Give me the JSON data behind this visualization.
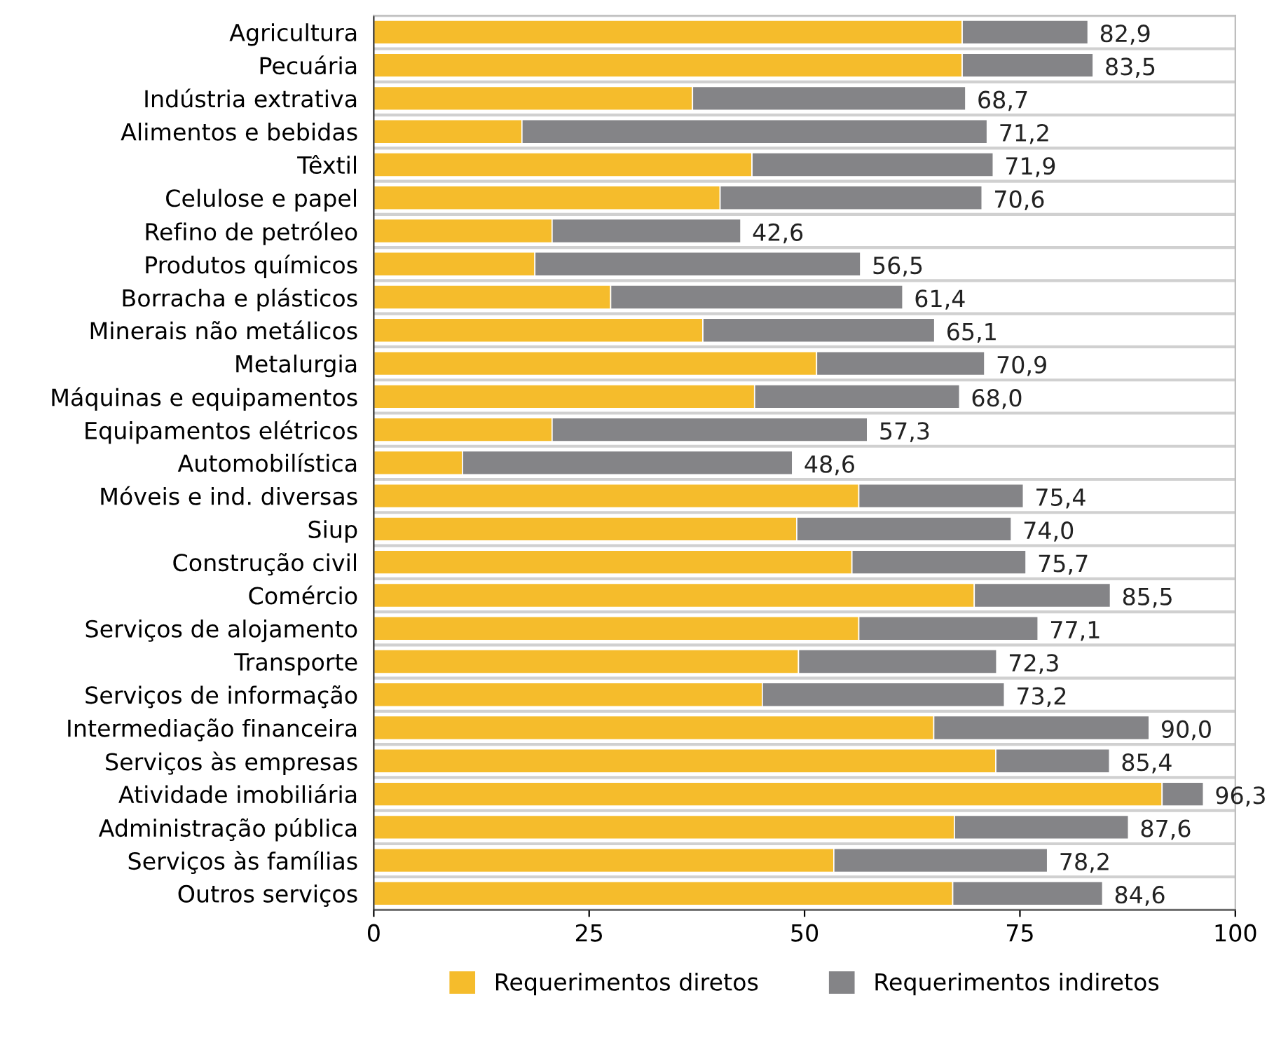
{
  "chart_data": {
    "type": "bar",
    "orientation": "horizontal",
    "stacked": true,
    "categories": [
      "Agricultura",
      "Pecuária",
      "Indústria extrativa",
      "Alimentos e bebidas",
      "Têxtil",
      "Celulose e papel",
      "Refino de petróleo",
      "Produtos químicos",
      "Borracha e plásticos",
      "Minerais não metálicos",
      "Metalurgia",
      "Máquinas e equipamentos",
      "Equipamentos elétricos",
      "Automobilística",
      "Móveis e ind. diversas",
      "Siup",
      "Construção civil",
      "Comércio",
      "Serviços de alojamento",
      "Transporte",
      "Serviços de informação",
      "Intermediação financeira",
      "Serviços às empresas",
      "Atividade imobiliária",
      "Administração pública",
      "Serviços às famílias",
      "Outros serviços"
    ],
    "series": [
      {
        "name": "Requerimentos diretos",
        "color": "#f5bc2c",
        "values": [
          68.3,
          68.3,
          37.0,
          17.2,
          43.9,
          40.2,
          20.7,
          18.7,
          27.5,
          38.2,
          51.4,
          44.2,
          20.7,
          10.3,
          56.3,
          49.1,
          55.5,
          69.7,
          56.3,
          49.3,
          45.1,
          65.0,
          72.2,
          91.5,
          67.4,
          53.4,
          67.2
        ]
      },
      {
        "name": "Requerimentos indiretos",
        "color": "#848487",
        "values": [
          14.6,
          15.2,
          31.7,
          54.0,
          28.0,
          30.4,
          21.9,
          37.8,
          33.9,
          26.9,
          19.5,
          23.8,
          36.6,
          38.3,
          19.1,
          24.9,
          20.2,
          15.8,
          20.8,
          23.0,
          28.1,
          25.0,
          13.2,
          4.8,
          20.2,
          24.8,
          17.4
        ]
      }
    ],
    "totals": [
      "82,9",
      "83,5",
      "68,7",
      "71,2",
      "71,9",
      "70,6",
      "42,6",
      "56,5",
      "61,4",
      "65,1",
      "70,9",
      "68,0",
      "57,3",
      "48,6",
      "75,4",
      "74,0",
      "75,7",
      "85,5",
      "77,1",
      "72,3",
      "73,2",
      "90,0",
      "85,4",
      "96,3",
      "87,6",
      "78,2",
      "84,6"
    ],
    "xlim": [
      0,
      100
    ],
    "xticks": [
      0,
      25,
      50,
      75,
      100
    ],
    "grid": false,
    "legend": "bottom"
  }
}
